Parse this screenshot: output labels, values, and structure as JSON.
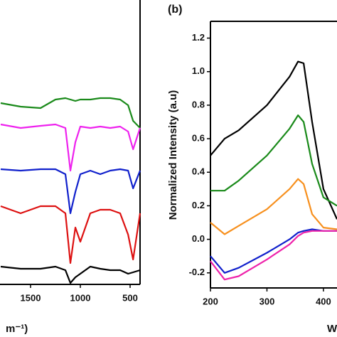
{
  "chart_data": [
    {
      "type": "line",
      "x_label": "m⁻¹)",
      "x": [
        1800,
        1600,
        1400,
        1250,
        1150,
        1100,
        1050,
        1000,
        900,
        800,
        700,
        600,
        520,
        470,
        400
      ],
      "xlim": [
        1807,
        400
      ],
      "xticks": [
        1500,
        1000,
        500
      ],
      "ylim": [
        0,
        400
      ],
      "series": [
        {
          "color": "#1a8a1a",
          "values": [
            255,
            250,
            248,
            260,
            262,
            260,
            258,
            260,
            260,
            262,
            262,
            260,
            252,
            230,
            220
          ]
        },
        {
          "color": "#ee22ee",
          "values": [
            225,
            220,
            223,
            225,
            220,
            160,
            200,
            222,
            220,
            222,
            220,
            222,
            215,
            190,
            220
          ]
        },
        {
          "color": "#1020cc",
          "values": [
            162,
            160,
            162,
            162,
            155,
            100,
            130,
            155,
            160,
            155,
            160,
            162,
            160,
            135,
            160
          ]
        },
        {
          "color": "#dd1111",
          "values": [
            110,
            100,
            110,
            110,
            100,
            30,
            80,
            60,
            100,
            105,
            105,
            100,
            70,
            35,
            100
          ]
        },
        {
          "color": "#000000",
          "values": [
            25,
            22,
            22,
            25,
            20,
            2,
            10,
            15,
            25,
            22,
            20,
            20,
            15,
            17,
            20
          ]
        }
      ]
    },
    {
      "type": "line",
      "panel_label": "(b)",
      "y_label": "Normalized Intensity (a.u)",
      "x_label": "W",
      "x": [
        200,
        225,
        250,
        300,
        340,
        355,
        365,
        380,
        400,
        424
      ],
      "xlim": [
        200,
        424
      ],
      "xticks": [
        200,
        300,
        400
      ],
      "ylim": [
        -0.29,
        1.3
      ],
      "yticks": [
        {
          "value": -0.2,
          "label": "-0.2"
        },
        {
          "value": 0,
          "label": "0.0"
        },
        0.2,
        0.4,
        0.6,
        0.8,
        {
          "value": 1,
          "label": "1.0"
        },
        1.2
      ],
      "series": [
        {
          "color": "#000000",
          "values": [
            0.5,
            0.6,
            0.65,
            0.8,
            0.97,
            1.06,
            1.05,
            0.7,
            0.3,
            0.12
          ]
        },
        {
          "color": "#1a8a1a",
          "values": [
            0.29,
            0.29,
            0.35,
            0.5,
            0.66,
            0.74,
            0.7,
            0.45,
            0.25,
            0.2
          ]
        },
        {
          "color": "#f7901e",
          "values": [
            0.1,
            0.03,
            0.08,
            0.18,
            0.3,
            0.36,
            0.33,
            0.15,
            0.07,
            0.06
          ]
        },
        {
          "color": "#1020cc",
          "values": [
            -0.1,
            -0.2,
            -0.17,
            -0.08,
            0.0,
            0.04,
            0.05,
            0.06,
            0.05,
            0.05
          ]
        },
        {
          "color": "#ee22aa",
          "values": [
            -0.13,
            -0.24,
            -0.22,
            -0.12,
            -0.03,
            0.02,
            0.04,
            0.05,
            0.05,
            0.05
          ]
        }
      ]
    }
  ]
}
